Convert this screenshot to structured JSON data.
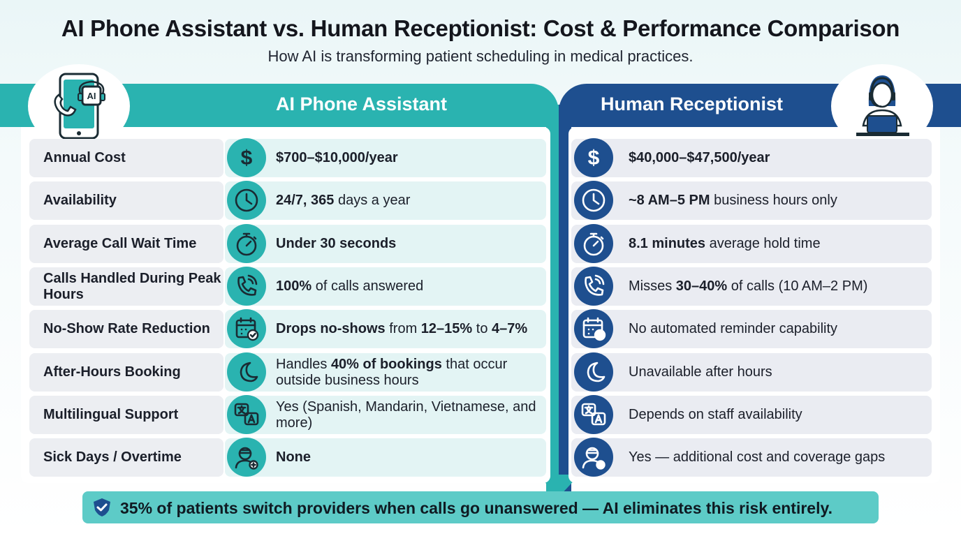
{
  "title": "AI Phone Assistant vs. Human Receptionist: Cost & Performance Comparison",
  "subtitle": "How AI is transforming patient scheduling in medical practices.",
  "columns": {
    "ai": "AI Phone Assistant",
    "human": "Human Receptionist"
  },
  "colors": {
    "ai_accent": "#2ab3b0",
    "human_accent": "#1e4f8f",
    "footer_bg": "#5dcbc7"
  },
  "rows": [
    {
      "label": "Annual Cost",
      "icon": "dollar-icon",
      "ai": {
        "bold": "$700–$10,000/year",
        "rest": ""
      },
      "human": {
        "pre": "",
        "bold": "$40,000–$47,500/year",
        "rest": ""
      }
    },
    {
      "label": "Availability",
      "icon": "clock-icon",
      "ai": {
        "bold": "24/7, 365",
        "rest": " days a year"
      },
      "human": {
        "pre": "",
        "bold": "~8 AM–5 PM",
        "rest": " business hours only"
      }
    },
    {
      "label": "Average Call Wait Time",
      "icon": "stopwatch-icon",
      "ai": {
        "bold": "Under 30 seconds",
        "rest": ""
      },
      "human": {
        "pre": "",
        "bold": "8.1 minutes",
        "rest": " average hold time"
      }
    },
    {
      "label": "Calls Handled During Peak Hours",
      "icon": "phone-ringing-icon",
      "ai": {
        "bold": "100%",
        "rest": " of calls answered"
      },
      "human": {
        "pre": "Misses ",
        "bold": "30–40%",
        "rest": " of calls (10 AM–2 PM)"
      }
    },
    {
      "label": "No-Show Rate Reduction",
      "icon": "calendar-check-icon",
      "ai": {
        "bold": "Drops no-shows",
        "mid": " from ",
        "bold2": "12–15%",
        "mid2": " to ",
        "bold3": "4–7%"
      },
      "human": {
        "pre": "No automated reminder capability",
        "bold": "",
        "rest": ""
      }
    },
    {
      "label": "After-Hours Booking",
      "icon": "moon-icon",
      "ai": {
        "pre": "Handles ",
        "bold": "40% of bookings",
        "rest": " that occur outside business hours"
      },
      "human": {
        "pre": "Unavailable after hours",
        "bold": "",
        "rest": ""
      }
    },
    {
      "label": "Multilingual Support",
      "icon": "translate-icon",
      "ai": {
        "bold": "",
        "rest": "Yes (Spanish, Mandarin, Vietnamese, and more)"
      },
      "human": {
        "pre": "Depends on staff availability",
        "bold": "",
        "rest": ""
      }
    },
    {
      "label": "Sick Days / Overtime",
      "icon": "sick-person-icon",
      "ai": {
        "bold": "None",
        "rest": ""
      },
      "human": {
        "pre": "Yes — additional cost and coverage gaps",
        "bold": "",
        "rest": ""
      }
    }
  ],
  "footer": "35% of patients switch providers when calls go unanswered — AI eliminates this risk entirely.",
  "ai_chip_text": "AI"
}
